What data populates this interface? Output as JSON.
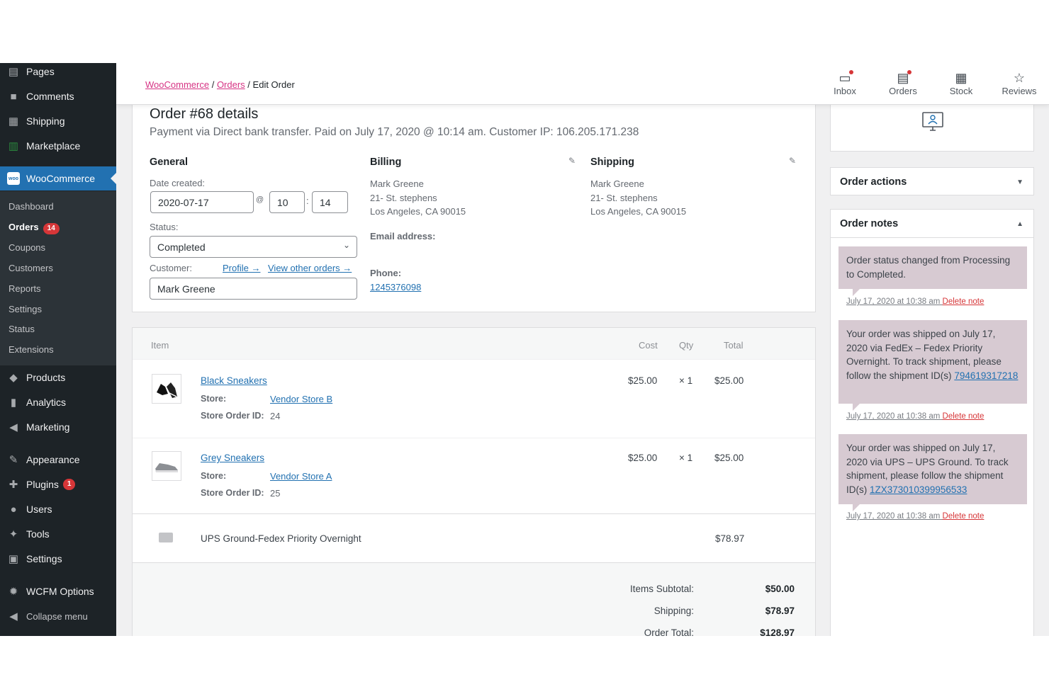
{
  "sidebar": {
    "top_items": [
      {
        "label": "Pages",
        "icon": "pages-icon",
        "glyph": "▤"
      },
      {
        "label": "Comments",
        "icon": "comments-icon",
        "glyph": "■"
      },
      {
        "label": "Shipping",
        "icon": "shipping-grid-icon",
        "glyph": "▦"
      },
      {
        "label": "Marketplace",
        "icon": "marketplace-icon",
        "glyph": "▥"
      }
    ],
    "woocommerce": {
      "label": "WooCommerce",
      "icon_text": "woo"
    },
    "submenu": [
      {
        "label": "Dashboard"
      },
      {
        "label": "Orders",
        "badge": "14"
      },
      {
        "label": "Coupons"
      },
      {
        "label": "Customers"
      },
      {
        "label": "Reports"
      },
      {
        "label": "Settings"
      },
      {
        "label": "Status"
      },
      {
        "label": "Extensions"
      }
    ],
    "bottom_items": [
      {
        "label": "Products",
        "icon": "products-icon",
        "glyph": "◆"
      },
      {
        "label": "Analytics",
        "icon": "analytics-icon",
        "glyph": "▮"
      },
      {
        "label": "Marketing",
        "icon": "marketing-icon",
        "glyph": "◀"
      },
      {
        "label": "Appearance",
        "icon": "appearance-icon",
        "glyph": "✎"
      },
      {
        "label": "Plugins",
        "icon": "plugins-icon",
        "glyph": "✚",
        "badge": "1"
      },
      {
        "label": "Users",
        "icon": "users-icon",
        "glyph": "●"
      },
      {
        "label": "Tools",
        "icon": "tools-icon",
        "glyph": "✦"
      },
      {
        "label": "Settings",
        "icon": "settings-icon",
        "glyph": "▣"
      },
      {
        "label": "WCFM Options",
        "icon": "wcfm-gear-icon",
        "glyph": "✹"
      },
      {
        "label": "Collapse menu",
        "icon": "collapse-icon",
        "glyph": "◀"
      }
    ]
  },
  "breadcrumb": {
    "root": "WooCommerce",
    "sep": "/",
    "section": "Orders",
    "current": "Edit Order"
  },
  "activity_bar": [
    {
      "label": "Inbox",
      "icon": "inbox-icon",
      "glyph": "▭",
      "dot": true
    },
    {
      "label": "Orders",
      "icon": "orders-icon",
      "glyph": "▤",
      "dot": true
    },
    {
      "label": "Stock",
      "icon": "stock-icon",
      "glyph": "▦",
      "dot": false
    },
    {
      "label": "Reviews",
      "icon": "star-icon",
      "glyph": "☆",
      "dot": false
    }
  ],
  "order": {
    "title": "Order #68 details",
    "subtitle": "Payment via Direct bank transfer. Paid on July 17, 2020 @ 10:14 am. Customer IP: 106.205.171.238",
    "general": {
      "heading": "General",
      "date_label": "Date created:",
      "date": "2020-07-17",
      "at": "@",
      "hour": "10",
      "colon": ":",
      "minute": "14",
      "status_label": "Status:",
      "status": "Completed",
      "customer_label": "Customer:",
      "profile_link": "Profile →",
      "other_orders_link": "View other orders →",
      "customer": "Mark Greene"
    },
    "billing": {
      "heading": "Billing",
      "name": "Mark Greene",
      "street": "21- St. stephens",
      "city": "Los Angeles, CA 90015",
      "email_label": "Email address:",
      "phone_label": "Phone:",
      "phone": "1245376098"
    },
    "shipping": {
      "heading": "Shipping",
      "name": "Mark Greene",
      "street": "21- St. stephens",
      "city": "Los Angeles, CA 90015"
    }
  },
  "items": {
    "headers": {
      "item": "Item",
      "cost": "Cost",
      "qty": "Qty",
      "total": "Total"
    },
    "store_label": "Store:",
    "store_order_label": "Store Order ID:",
    "rows": [
      {
        "name": "Black Sneakers",
        "store": "Vendor Store B",
        "store_order_id": "24",
        "cost": "$25.00",
        "qty": "× 1",
        "total": "$25.00"
      },
      {
        "name": "Grey Sneakers",
        "store": "Vendor Store A",
        "store_order_id": "25",
        "cost": "$25.00",
        "qty": "× 1",
        "total": "$25.00"
      }
    ],
    "shipping_line": {
      "name": "UPS Ground-Fedex Priority Overnight",
      "total": "$78.97"
    },
    "totals": [
      {
        "label": "Items Subtotal:",
        "value": "$50.00"
      },
      {
        "label": "Shipping:",
        "value": "$78.97"
      },
      {
        "label": "Order Total:",
        "value": "$128.97"
      }
    ]
  },
  "right": {
    "order_actions": "Order actions",
    "order_notes": "Order notes",
    "notes": [
      {
        "text": "Order status changed from Processing to Completed.",
        "link": "",
        "meta": "July 17, 2020 at 10:38 am",
        "delete": "Delete note"
      },
      {
        "text": "Your order was shipped on July 17, 2020 via FedEx – Fedex Priority Overnight. To track shipment, please follow the shipment ID(s)",
        "link": "794619317218",
        "meta": "July 17, 2020 at 10:38 am",
        "delete": "Delete note"
      },
      {
        "text": "Your order was shipped on July 17, 2020 via UPS – UPS Ground. To track shipment, please follow the shipment ID(s)",
        "link": "1ZX373010399956533",
        "meta": "July 17, 2020 at 10:38 am",
        "delete": "Delete note"
      }
    ]
  },
  "colors": {
    "sidebar": "#1d2327",
    "accent": "#2271b1",
    "badge": "#d63638",
    "note": "#d7cad2",
    "crumb_link": "#d63384"
  }
}
